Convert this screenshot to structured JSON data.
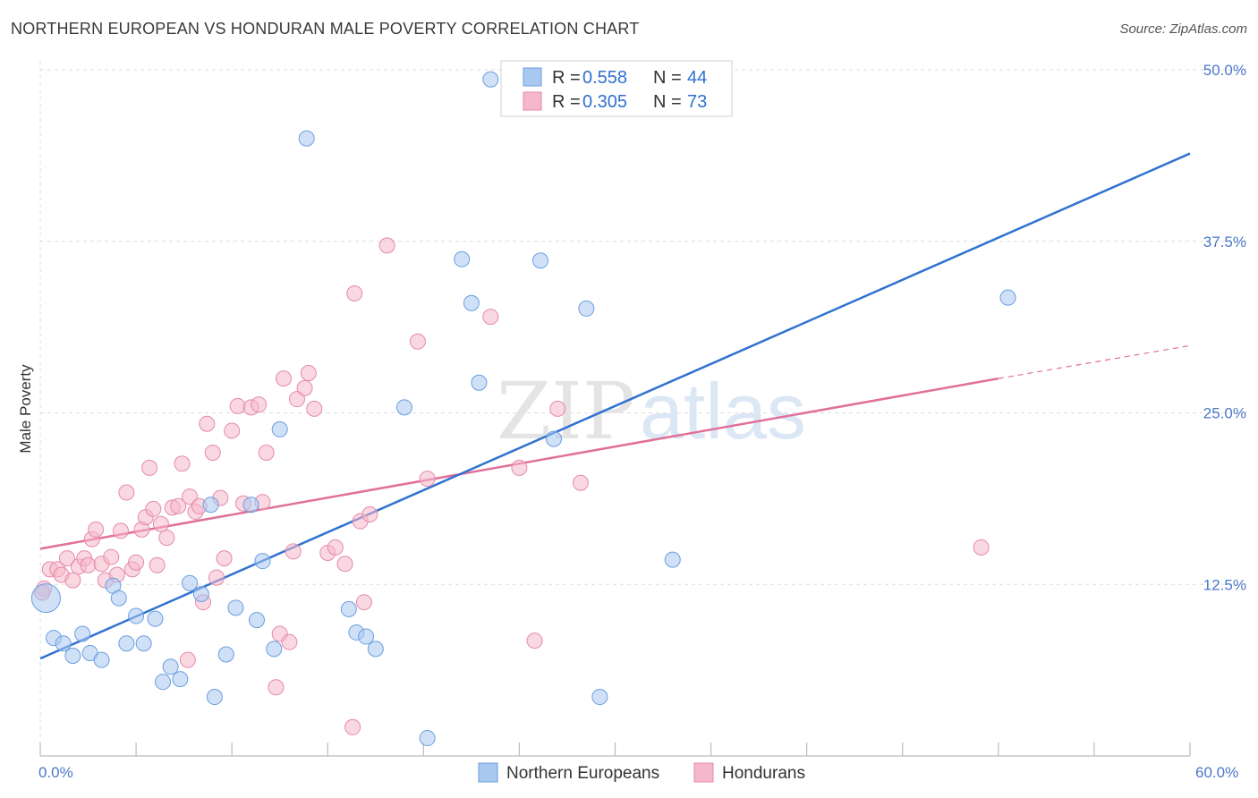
{
  "header": {
    "title": "NORTHERN EUROPEAN VS HONDURAN MALE POVERTY CORRELATION CHART",
    "source": "Source: ZipAtlas.com"
  },
  "watermark": {
    "part1": "ZIP",
    "part2": "atlas"
  },
  "legend_top": {
    "rows": [
      {
        "r_label": "R = ",
        "r_value": "0.558",
        "n_label": "N = ",
        "n_value": "44",
        "color": "#a9c8f0"
      },
      {
        "r_label": "R = ",
        "r_value": "0.305",
        "n_label": "N = ",
        "n_value": "73",
        "color": "#f5b8cb"
      }
    ]
  },
  "legend_bottom": {
    "items": [
      {
        "label": "Northern Europeans",
        "color": "#a9c8f0"
      },
      {
        "label": "Hondurans",
        "color": "#f5b8cb"
      }
    ]
  },
  "chart_data": {
    "type": "scatter",
    "title": "NORTHERN EUROPEAN VS HONDURAN MALE POVERTY CORRELATION CHART",
    "xlabel": "",
    "ylabel": "Male Poverty",
    "xlim": [
      0,
      60
    ],
    "ylim": [
      0,
      50
    ],
    "x_tick_labels": [
      "0.0%",
      "60.0%"
    ],
    "y_ticks": [
      12.5,
      25.0,
      37.5,
      50.0
    ],
    "y_tick_labels": [
      "12.5%",
      "25.0%",
      "37.5%",
      "50.0%"
    ],
    "grid": true,
    "legend_position": "top-center",
    "series": [
      {
        "name": "Northern Europeans",
        "color": "#a9c8f0",
        "stroke": "#6a9edf",
        "trend": {
          "x": [
            0,
            60
          ],
          "y": [
            7.1,
            43.9
          ]
        },
        "points": [
          [
            0.3,
            11.5
          ],
          [
            0.7,
            8.6
          ],
          [
            1.2,
            8.2
          ],
          [
            1.7,
            7.3
          ],
          [
            2.2,
            8.9
          ],
          [
            2.6,
            7.5
          ],
          [
            3.2,
            7.0
          ],
          [
            3.8,
            12.4
          ],
          [
            4.1,
            11.5
          ],
          [
            4.5,
            8.2
          ],
          [
            5.0,
            10.2
          ],
          [
            5.4,
            8.2
          ],
          [
            6.0,
            10.0
          ],
          [
            6.4,
            5.4
          ],
          [
            6.8,
            6.5
          ],
          [
            7.3,
            5.6
          ],
          [
            7.8,
            12.6
          ],
          [
            8.4,
            11.8
          ],
          [
            8.9,
            18.3
          ],
          [
            9.1,
            4.3
          ],
          [
            9.7,
            7.4
          ],
          [
            10.2,
            10.8
          ],
          [
            11.0,
            18.3
          ],
          [
            11.3,
            9.9
          ],
          [
            11.6,
            14.2
          ],
          [
            12.5,
            23.8
          ],
          [
            12.2,
            7.8
          ],
          [
            13.9,
            45.0
          ],
          [
            16.1,
            10.7
          ],
          [
            16.5,
            9.0
          ],
          [
            17.0,
            8.7
          ],
          [
            17.5,
            7.8
          ],
          [
            19.0,
            25.4
          ],
          [
            20.2,
            1.3
          ],
          [
            22.0,
            36.2
          ],
          [
            22.5,
            33.0
          ],
          [
            22.9,
            27.2
          ],
          [
            23.5,
            49.3
          ],
          [
            26.1,
            36.1
          ],
          [
            26.8,
            23.1
          ],
          [
            28.5,
            32.6
          ],
          [
            29.2,
            4.3
          ],
          [
            33.0,
            14.3
          ],
          [
            50.5,
            33.4
          ]
        ]
      },
      {
        "name": "Hondurans",
        "color": "#f5b8cb",
        "stroke": "#e58aa8",
        "trend": {
          "x": [
            0,
            50
          ],
          "y": [
            15.1,
            27.5
          ]
        },
        "trend_dashed": {
          "x": [
            50,
            60
          ],
          "y": [
            27.5,
            29.9
          ]
        },
        "points": [
          [
            0.2,
            12.2
          ],
          [
            0.5,
            13.6
          ],
          [
            0.9,
            13.6
          ],
          [
            1.1,
            13.2
          ],
          [
            1.4,
            14.4
          ],
          [
            1.7,
            12.8
          ],
          [
            2.0,
            13.8
          ],
          [
            2.3,
            14.4
          ],
          [
            2.5,
            13.9
          ],
          [
            2.7,
            15.8
          ],
          [
            2.9,
            16.5
          ],
          [
            3.2,
            14.0
          ],
          [
            3.4,
            12.8
          ],
          [
            3.7,
            14.5
          ],
          [
            4.0,
            13.2
          ],
          [
            4.2,
            16.4
          ],
          [
            4.5,
            19.2
          ],
          [
            4.8,
            13.6
          ],
          [
            5.0,
            14.1
          ],
          [
            5.3,
            16.5
          ],
          [
            5.5,
            17.4
          ],
          [
            5.7,
            21.0
          ],
          [
            5.9,
            18.0
          ],
          [
            6.1,
            13.9
          ],
          [
            6.3,
            16.9
          ],
          [
            6.6,
            15.9
          ],
          [
            6.9,
            18.1
          ],
          [
            7.2,
            18.2
          ],
          [
            7.4,
            21.3
          ],
          [
            7.7,
            7.0
          ],
          [
            7.8,
            18.9
          ],
          [
            8.1,
            17.8
          ],
          [
            8.3,
            18.2
          ],
          [
            8.5,
            11.2
          ],
          [
            8.7,
            24.2
          ],
          [
            9.0,
            22.1
          ],
          [
            9.2,
            13.0
          ],
          [
            9.4,
            18.8
          ],
          [
            9.6,
            14.4
          ],
          [
            10.0,
            23.7
          ],
          [
            10.3,
            25.5
          ],
          [
            10.6,
            18.4
          ],
          [
            11.0,
            25.4
          ],
          [
            11.4,
            25.6
          ],
          [
            11.6,
            18.5
          ],
          [
            11.8,
            22.1
          ],
          [
            12.3,
            5.0
          ],
          [
            12.5,
            8.9
          ],
          [
            12.7,
            27.5
          ],
          [
            13.0,
            8.3
          ],
          [
            13.2,
            14.9
          ],
          [
            13.4,
            26.0
          ],
          [
            13.8,
            26.8
          ],
          [
            14.0,
            27.9
          ],
          [
            14.3,
            25.3
          ],
          [
            15.0,
            14.8
          ],
          [
            15.4,
            15.2
          ],
          [
            15.9,
            14.0
          ],
          [
            16.3,
            2.1
          ],
          [
            16.4,
            33.7
          ],
          [
            16.7,
            17.1
          ],
          [
            16.9,
            11.2
          ],
          [
            17.2,
            17.6
          ],
          [
            18.1,
            37.2
          ],
          [
            19.7,
            30.2
          ],
          [
            20.2,
            20.2
          ],
          [
            23.5,
            32.0
          ],
          [
            25.0,
            21.0
          ],
          [
            25.8,
            8.4
          ],
          [
            27.0,
            25.3
          ],
          [
            28.2,
            19.9
          ],
          [
            49.1,
            15.2
          ],
          [
            0.1,
            11.9
          ]
        ]
      }
    ]
  }
}
